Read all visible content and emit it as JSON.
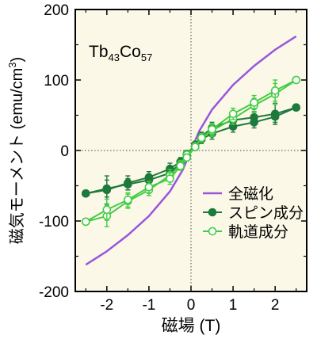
{
  "chart_data": {
    "type": "line",
    "title": "",
    "annotation": "Tb43Co57",
    "annotation_parts": [
      {
        "text": "Tb",
        "sub": false
      },
      {
        "text": "43",
        "sub": true
      },
      {
        "text": "Co",
        "sub": false
      },
      {
        "text": "57",
        "sub": true
      }
    ],
    "xlabel": "磁場 (T)",
    "ylabel_prefix": "磁気モーメント (emu/cm",
    "ylabel_sup": "3",
    "ylabel_suffix": ")",
    "xlim": [
      -2.75,
      2.75
    ],
    "ylim": [
      -200,
      200
    ],
    "x_ticks": [
      -2,
      -1,
      0,
      1,
      2
    ],
    "x_tick_labels": [
      "-2",
      "-1",
      "0",
      "1",
      "2"
    ],
    "y_ticks": [
      -200,
      -100,
      0,
      100,
      200
    ],
    "y_tick_labels": [
      "-200",
      "-100",
      "0",
      "100",
      "200"
    ],
    "zero_lines": "dotted",
    "legend_position": "bottom-right",
    "plot_background": "#fbf8e8",
    "series": [
      {
        "name": "全磁化",
        "style": "line",
        "color": "#9955dd",
        "x": [
          -2.5,
          -2.0,
          -1.5,
          -1.0,
          -0.5,
          -0.2,
          0,
          0.2,
          0.5,
          1.0,
          1.5,
          2.0,
          2.5
        ],
        "y": [
          -162,
          -143,
          -120,
          -93,
          -58,
          -28,
          0,
          28,
          58,
          93,
          120,
          143,
          162
        ]
      },
      {
        "name": "スピン成分",
        "style": "filled",
        "color": "#1e7a3c",
        "forward": {
          "x": [
            -2.5,
            -2.0,
            -1.5,
            -1.0,
            -0.5,
            -0.25,
            -0.1,
            0.1,
            0.25,
            0.5,
            1.0,
            1.5,
            2.0,
            2.5
          ],
          "y": [
            -61,
            -56,
            -46,
            -38,
            -26,
            -16,
            -5,
            8,
            20,
            32,
            43,
            47,
            52,
            61
          ],
          "err": [
            4,
            20,
            10,
            8,
            8,
            6,
            5,
            5,
            6,
            8,
            8,
            8,
            15,
            4
          ]
        },
        "backward": {
          "x": [
            2.5,
            2.0,
            1.5,
            1.0,
            0.5,
            0.25,
            0.1,
            -0.1,
            -0.25,
            -0.5,
            -1.0,
            -1.5,
            -2.0,
            -2.5
          ],
          "y": [
            61,
            48,
            40,
            34,
            24,
            16,
            5,
            -8,
            -18,
            -32,
            -42,
            -48,
            -54,
            -61
          ],
          "err": [
            4,
            8,
            8,
            8,
            8,
            6,
            5,
            5,
            6,
            8,
            8,
            8,
            12,
            4
          ]
        }
      },
      {
        "name": "軌道成分",
        "style": "open",
        "color": "#44cc44",
        "forward": {
          "x": [
            -2.5,
            -2.0,
            -1.5,
            -1.0,
            -0.5,
            -0.25,
            -0.1,
            0.1,
            0.25,
            0.5,
            1.0,
            1.5,
            2.0,
            2.5
          ],
          "y": [
            -101,
            -93,
            -72,
            -56,
            -35,
            -20,
            -6,
            6,
            18,
            28,
            45,
            64,
            80,
            100
          ],
          "err": [
            4,
            15,
            10,
            8,
            8,
            6,
            5,
            5,
            6,
            8,
            8,
            10,
            15,
            4
          ]
        },
        "backward": {
          "x": [
            2.5,
            2.0,
            1.5,
            1.0,
            0.5,
            0.25,
            0.1,
            -0.1,
            -0.25,
            -0.5,
            -1.0,
            -1.5,
            -2.0,
            -2.5
          ],
          "y": [
            100,
            85,
            68,
            52,
            30,
            18,
            5,
            -10,
            -22,
            -40,
            -52,
            -70,
            -84,
            -101
          ],
          "err": [
            4,
            15,
            10,
            8,
            8,
            6,
            5,
            5,
            6,
            8,
            8,
            10,
            15,
            4
          ]
        }
      }
    ]
  }
}
